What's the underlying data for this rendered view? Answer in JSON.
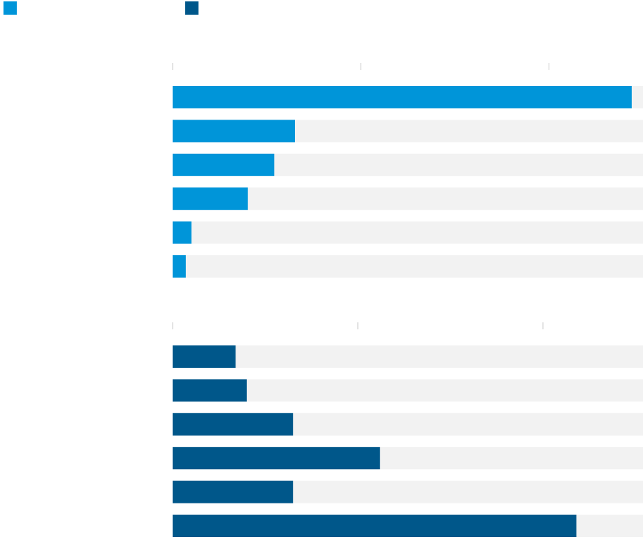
{
  "chart_data": [
    {
      "type": "bar",
      "orientation": "horizontal",
      "color": "#0095d9",
      "values": [
        2.44,
        0.65,
        0.54,
        0.4,
        0.1,
        0.07
      ],
      "xlim": [
        0,
        2.5
      ],
      "xticks": [
        0,
        1,
        2
      ]
    },
    {
      "type": "bar",
      "orientation": "horizontal",
      "color": "#00578a",
      "values": [
        0.34,
        0.4,
        0.65,
        1.12,
        0.65,
        2.18
      ],
      "xlim": [
        0,
        2.54
      ],
      "xticks": [
        0,
        1,
        2
      ]
    }
  ]
}
